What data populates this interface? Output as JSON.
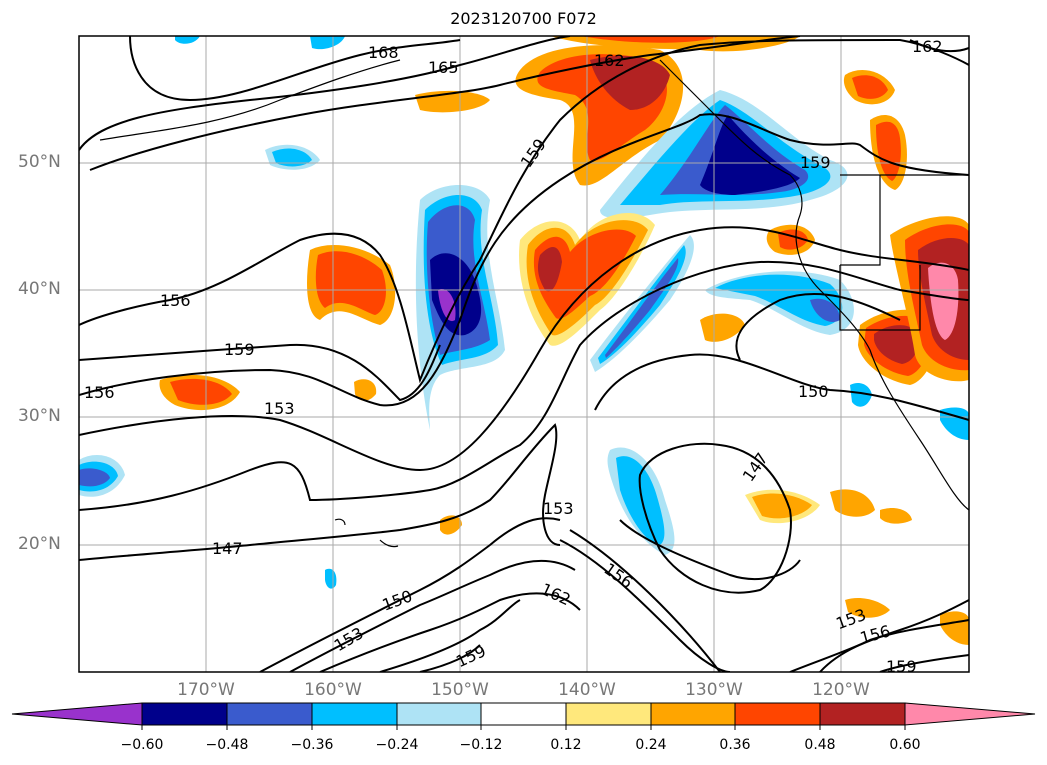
{
  "title": "2023120700 F072",
  "lat_labels": [
    "50°N",
    "40°N",
    "30°N",
    "20°N"
  ],
  "lon_labels": [
    "170°W",
    "160°W",
    "150°W",
    "140°W",
    "130°W",
    "120°W"
  ],
  "colorbar": {
    "ticks": [
      "−0.60",
      "−0.48",
      "−0.36",
      "−0.24",
      "−0.12",
      "0.12",
      "0.24",
      "0.36",
      "0.48",
      "0.60"
    ],
    "colors": [
      "#9932cc",
      "#00008b",
      "#3a5bcd",
      "#00bfff",
      "#aee3f5",
      "#ffffff",
      "#ffe87c",
      "#ffa500",
      "#ff4500",
      "#b22222",
      "#ff88aa"
    ]
  },
  "contour_labels": [
    "168",
    "165",
    "162",
    "162",
    "159",
    "159",
    "156",
    "159",
    "156",
    "153",
    "150",
    "147",
    "153",
    "156",
    "162",
    "150",
    "153",
    "147",
    "153",
    "156",
    "159",
    "159"
  ]
}
